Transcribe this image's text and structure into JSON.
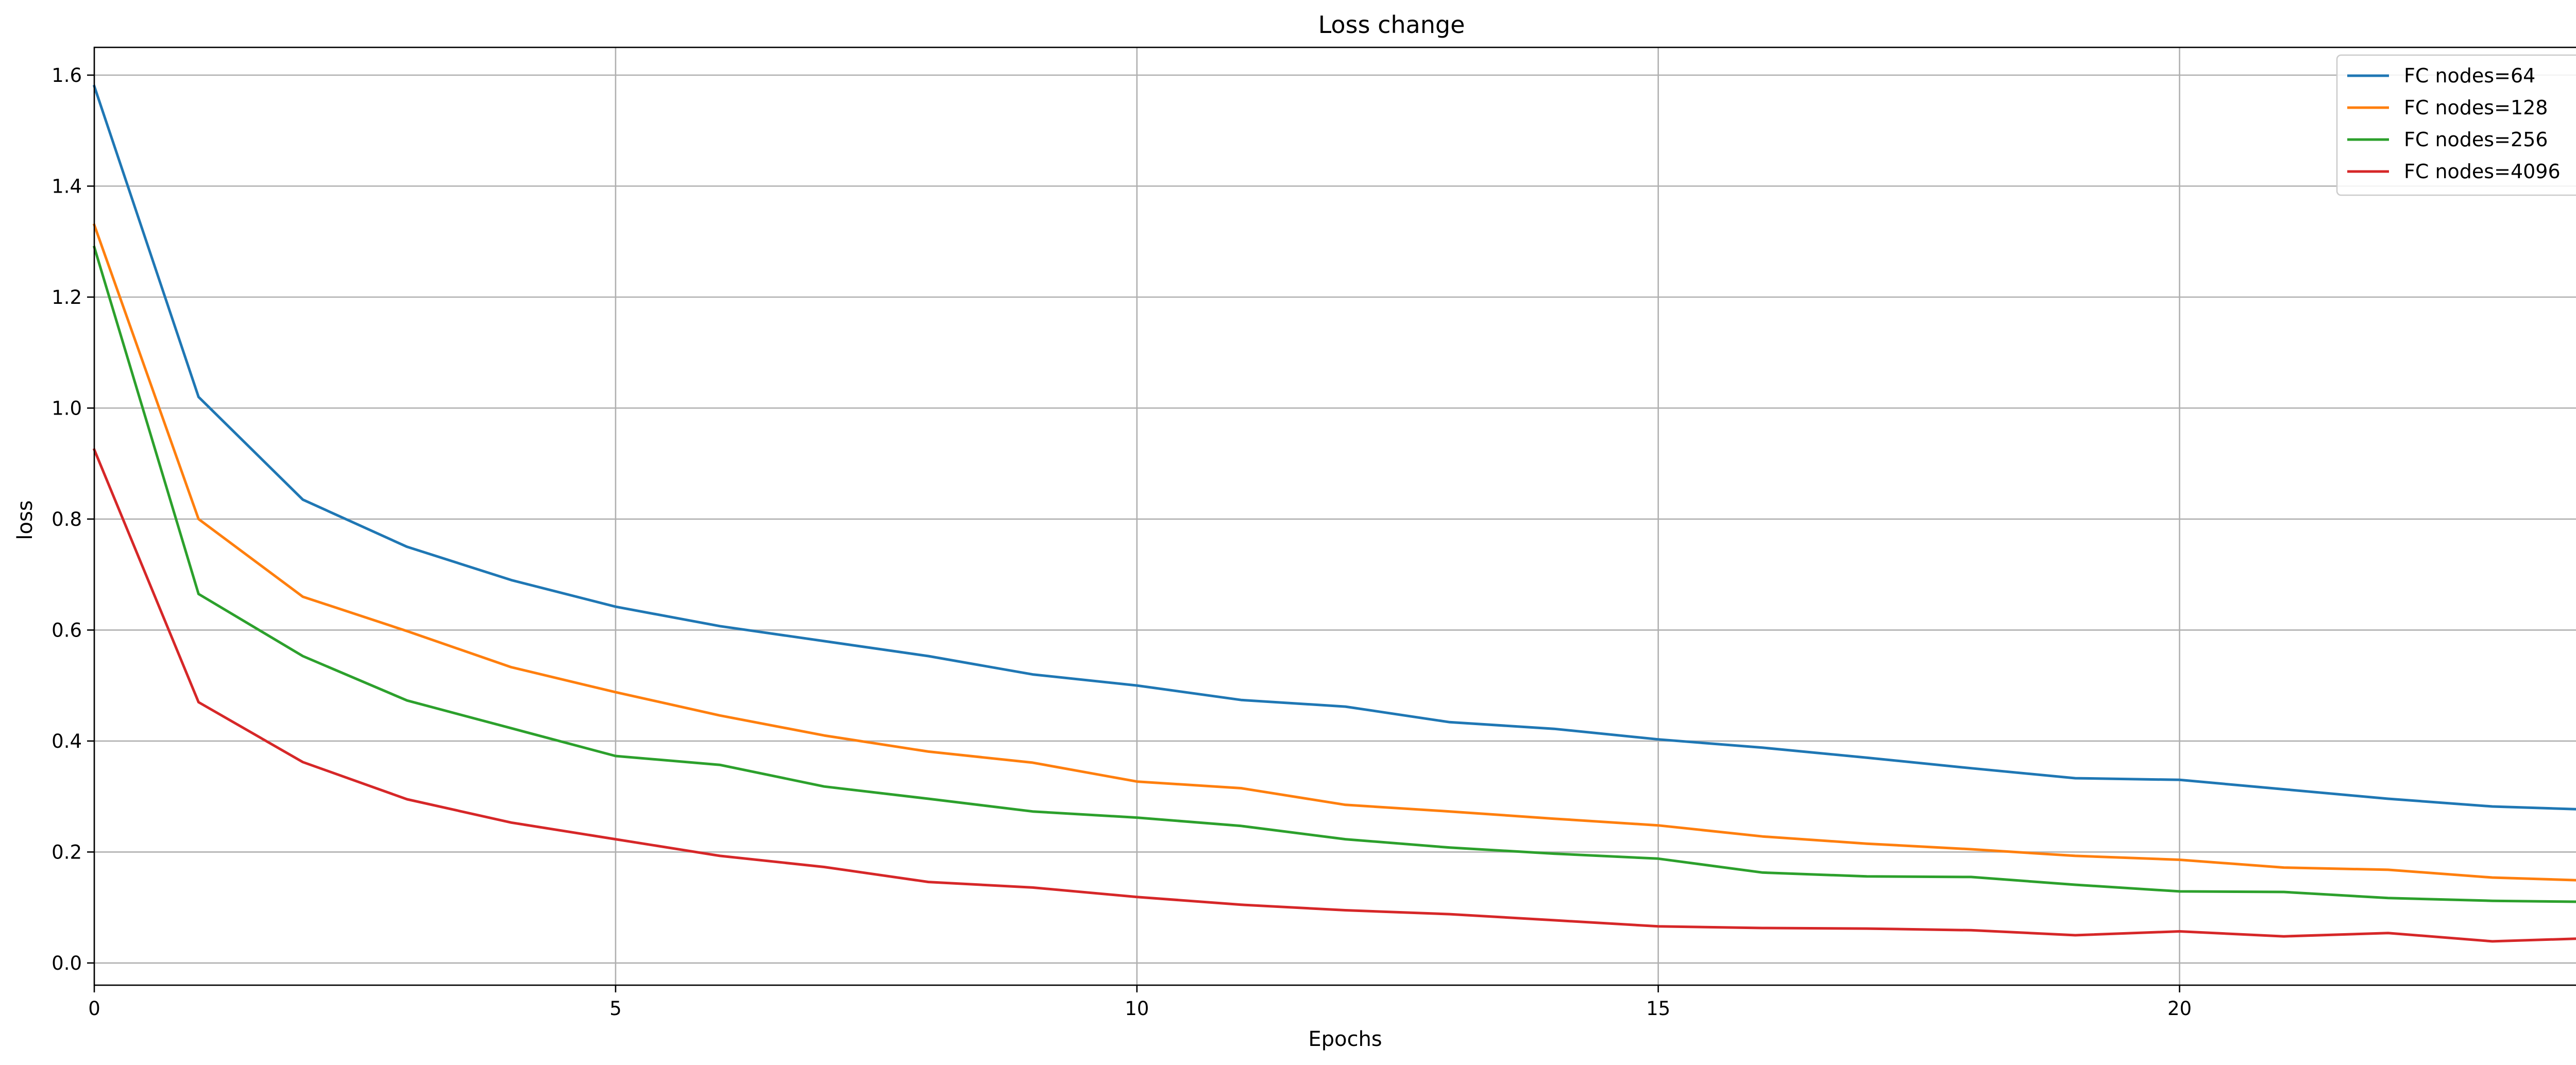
{
  "chart_data": {
    "type": "line",
    "title": "Loss change",
    "xlabel": "Epochs",
    "ylabel": "loss",
    "xlim": [
      0,
      24
    ],
    "ylim": [
      -0.04,
      1.65
    ],
    "xticks": [
      0,
      5,
      10,
      15,
      20
    ],
    "yticks": [
      0.0,
      0.2,
      0.4,
      0.6,
      0.8,
      1.0,
      1.2,
      1.4,
      1.6
    ],
    "grid": true,
    "legend_position": "top-right",
    "x": [
      0,
      1,
      2,
      3,
      4,
      5,
      6,
      7,
      8,
      9,
      10,
      11,
      12,
      13,
      14,
      15,
      16,
      17,
      18,
      19,
      20,
      21,
      22,
      23,
      24
    ],
    "series": [
      {
        "name": "FC nodes=64",
        "color": "#1f77b4",
        "values": [
          1.58,
          1.02,
          0.835,
          0.75,
          0.69,
          0.642,
          0.607,
          0.58,
          0.553,
          0.52,
          0.5,
          0.474,
          0.462,
          0.434,
          0.422,
          0.403,
          0.388,
          0.37,
          0.351,
          0.333,
          0.33,
          0.313,
          0.296,
          0.282,
          0.276
        ]
      },
      {
        "name": "FC nodes=128",
        "color": "#ff7f0e",
        "values": [
          1.33,
          0.8,
          0.66,
          0.598,
          0.533,
          0.488,
          0.446,
          0.41,
          0.381,
          0.361,
          0.327,
          0.315,
          0.285,
          0.273,
          0.26,
          0.248,
          0.228,
          0.215,
          0.205,
          0.193,
          0.186,
          0.172,
          0.168,
          0.154,
          0.148
        ]
      },
      {
        "name": "FC nodes=256",
        "color": "#2ca02c",
        "values": [
          1.29,
          0.665,
          0.553,
          0.473,
          0.423,
          0.373,
          0.357,
          0.318,
          0.296,
          0.273,
          0.262,
          0.247,
          0.223,
          0.208,
          0.197,
          0.188,
          0.163,
          0.156,
          0.155,
          0.141,
          0.129,
          0.128,
          0.117,
          0.112,
          0.11
        ]
      },
      {
        "name": "FC nodes=4096",
        "color": "#d62728",
        "values": [
          0.925,
          0.47,
          0.362,
          0.295,
          0.253,
          0.223,
          0.193,
          0.173,
          0.146,
          0.136,
          0.119,
          0.105,
          0.095,
          0.088,
          0.077,
          0.066,
          0.063,
          0.062,
          0.059,
          0.05,
          0.057,
          0.048,
          0.054,
          0.039,
          0.045
        ]
      }
    ]
  }
}
